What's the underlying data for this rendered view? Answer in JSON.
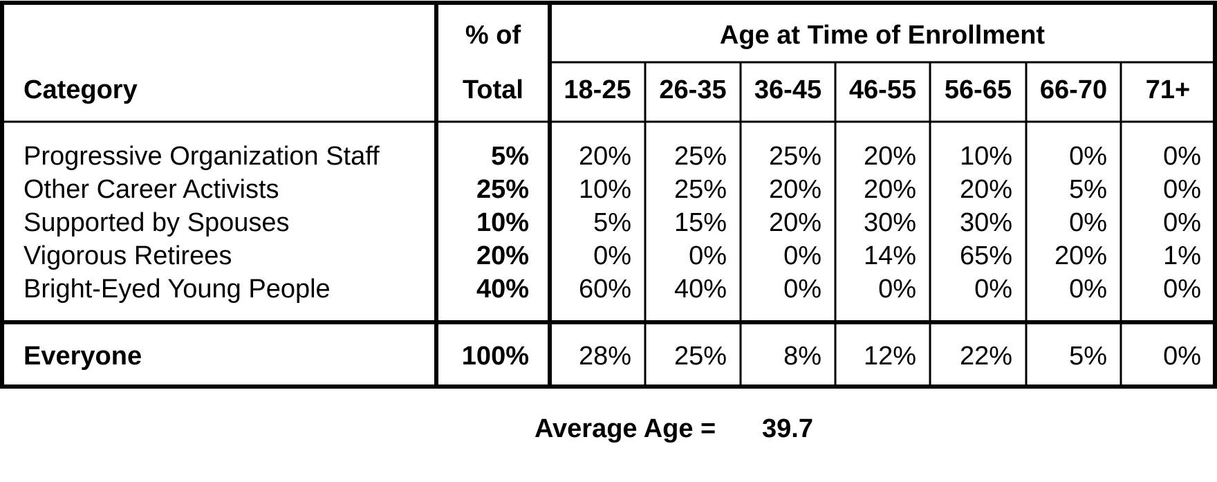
{
  "chart_data": {
    "type": "table",
    "header": {
      "category": "Category",
      "pct_line1": "% of",
      "pct_line2": "Total",
      "age_group": "Age at Time of Enrollment",
      "age_bands": [
        "18-25",
        "26-35",
        "36-45",
        "46-55",
        "56-65",
        "66-70",
        "71+"
      ]
    },
    "rows": [
      {
        "category": "Progressive Organization Staff",
        "pct_total": "5%",
        "values": [
          "20%",
          "25%",
          "25%",
          "20%",
          "10%",
          "0%",
          "0%"
        ]
      },
      {
        "category": "Other Career Activists",
        "pct_total": "25%",
        "values": [
          "10%",
          "25%",
          "20%",
          "20%",
          "20%",
          "5%",
          "0%"
        ]
      },
      {
        "category": "Supported by Spouses",
        "pct_total": "10%",
        "values": [
          "5%",
          "15%",
          "20%",
          "30%",
          "30%",
          "0%",
          "0%"
        ]
      },
      {
        "category": "Vigorous Retirees",
        "pct_total": "20%",
        "values": [
          "0%",
          "0%",
          "0%",
          "14%",
          "65%",
          "20%",
          "1%"
        ]
      },
      {
        "category": "Bright-Eyed Young People",
        "pct_total": "40%",
        "values": [
          "60%",
          "40%",
          "0%",
          "0%",
          "0%",
          "0%",
          "0%"
        ]
      }
    ],
    "total_row": {
      "category": "Everyone",
      "pct_total": "100%",
      "values": [
        "28%",
        "25%",
        "8%",
        "12%",
        "22%",
        "5%",
        "0%"
      ]
    },
    "footer": {
      "label": "Average Age =",
      "value": "39.7"
    }
  }
}
